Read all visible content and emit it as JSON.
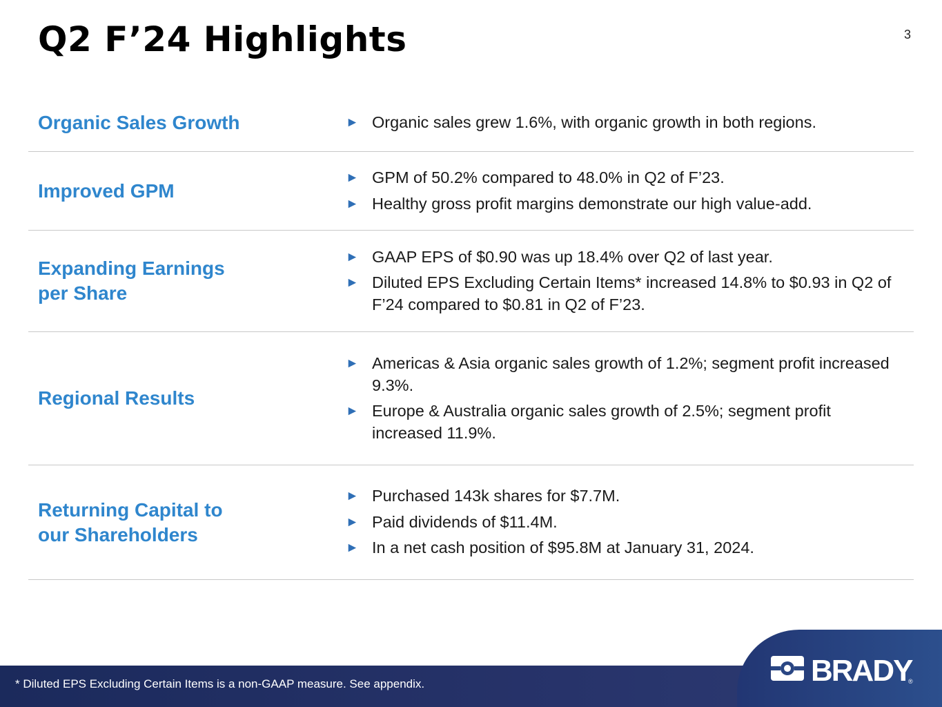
{
  "slide": {
    "title": "Q2 F’24 Highlights",
    "page_number": "3"
  },
  "rows": [
    {
      "label": "Organic Sales Growth",
      "bullets": [
        "Organic sales grew 1.6%, with organic growth in both regions."
      ]
    },
    {
      "label": "Improved GPM",
      "bullets": [
        "GPM of 50.2% compared to 48.0% in Q2 of F’23.",
        "Healthy gross profit margins demonstrate our high value-add."
      ]
    },
    {
      "label_lines": [
        "Expanding Earnings",
        "per Share"
      ],
      "bullets": [
        "GAAP EPS of $0.90 was up 18.4% over Q2 of last year.",
        "Diluted EPS Excluding Certain Items* increased 14.8% to $0.93 in Q2 of F’24 compared to $0.81 in Q2 of F’23."
      ]
    },
    {
      "label": "Regional Results",
      "bullets": [
        "Americas & Asia organic sales growth of 1.2%; segment profit increased 9.3%.",
        "Europe & Australia organic sales growth of 2.5%; segment profit increased 11.9%."
      ]
    },
    {
      "label_lines": [
        "Returning Capital to",
        "our Shareholders"
      ],
      "bullets": [
        "Purchased 143k shares for $7.7M.",
        "Paid dividends of $11.4M.",
        "In a net cash position of $95.8M at January 31, 2024."
      ]
    }
  ],
  "footer": {
    "footnote": "*   Diluted EPS Excluding Certain Items is a non-GAAP measure.  See appendix.",
    "brand": "BRADY",
    "registered_mark": "®"
  },
  "colors": {
    "accent_blue": "#2f86cd",
    "arrow_blue": "#2f6fb6",
    "footer_navy": "#1b2a5c"
  },
  "icons": {
    "bullet": "triangle-right-icon",
    "logo": "brady-logo-icon"
  }
}
